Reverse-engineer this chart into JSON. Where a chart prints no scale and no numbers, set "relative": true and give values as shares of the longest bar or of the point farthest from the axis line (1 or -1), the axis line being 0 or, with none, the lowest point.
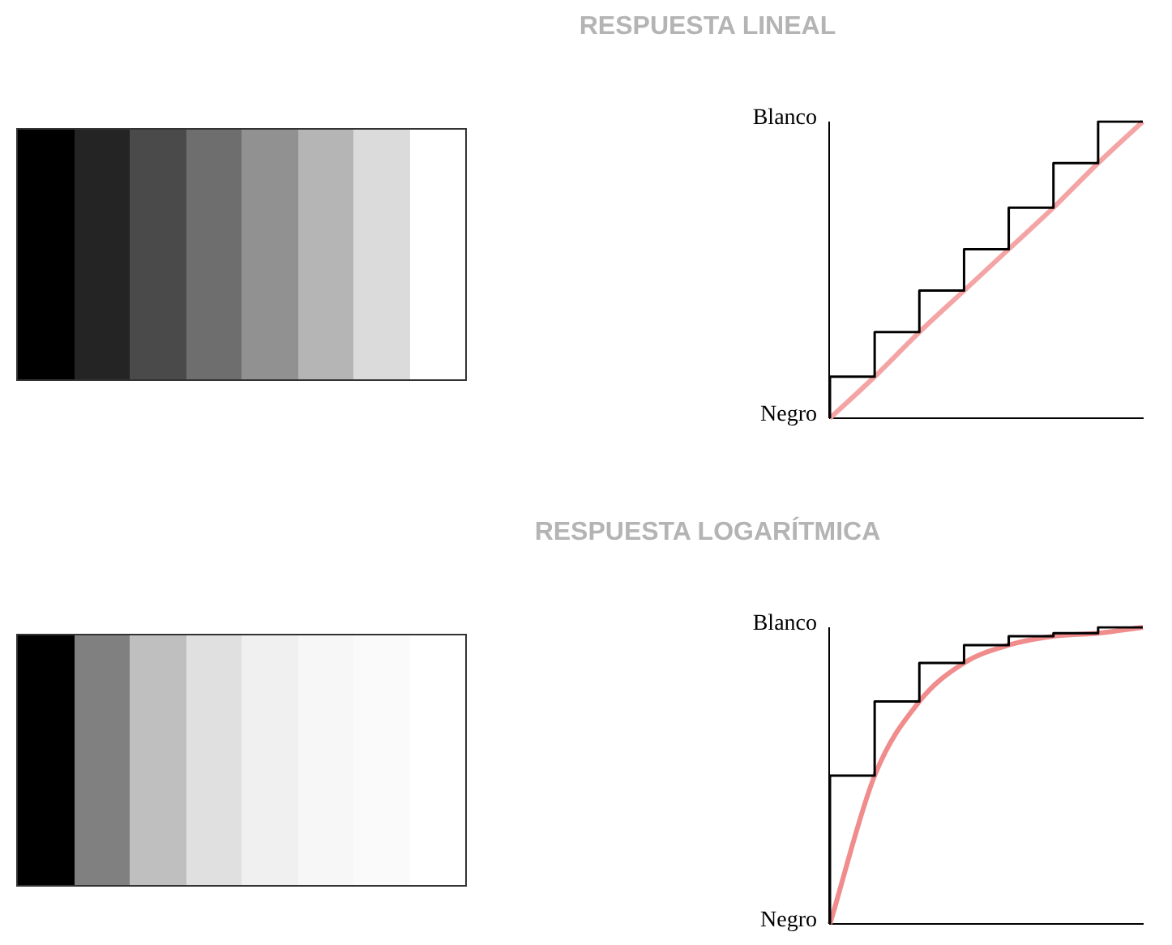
{
  "chart_data": [
    {
      "type": "step",
      "title": "RESPUESTA LINEAL",
      "relative": true,
      "categories": [
        null,
        null,
        null,
        null,
        null,
        null,
        null,
        null
      ],
      "legend": false,
      "grid": false,
      "marker": "none",
      "series": [
        {
          "type": "step",
          "color": "#000000",
          "values": [
            0,
            0.14,
            0.29,
            0.43,
            0.57,
            0.71,
            0.86,
            1
          ]
        },
        {
          "type": "line",
          "color": "#f4a4a4",
          "values": [
            0,
            0.14,
            0.29,
            0.43,
            0.57,
            0.71,
            0.86,
            1
          ]
        }
      ],
      "annotations": [
        "Blanco",
        "Negro"
      ]
    },
    {
      "type": "step",
      "title": "RESPUESTA LOGARÍTMICA",
      "relative": true,
      "categories": [
        null,
        null,
        null,
        null,
        null,
        null,
        null,
        null
      ],
      "legend": false,
      "grid": false,
      "marker": "none",
      "series": [
        {
          "type": "step",
          "color": "#000000",
          "values": [
            0,
            0.5,
            0.75,
            0.88,
            0.94,
            0.97,
            0.98,
            1
          ]
        },
        {
          "type": "line",
          "color": "#f08c8c",
          "values": [
            0,
            0.5,
            0.75,
            0.88,
            0.94,
            0.97,
            0.98,
            1
          ]
        }
      ],
      "annotations": [
        "Blanco",
        "Negro"
      ]
    }
  ]
}
